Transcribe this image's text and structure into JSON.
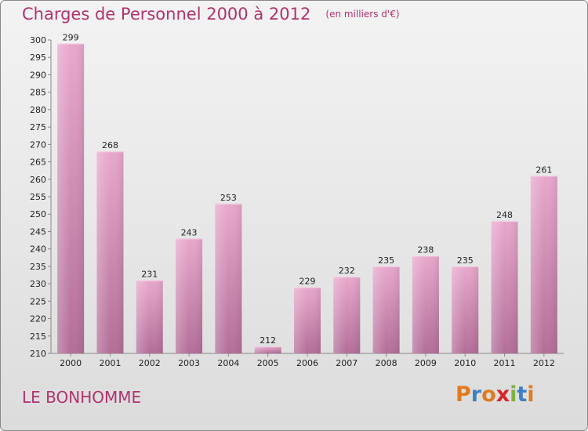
{
  "header": {
    "title": "Charges de Personnel 2000 à 2012",
    "subtitle": "(en milliers d'€)"
  },
  "footer": {
    "commune": "LE BONHOMME",
    "logo_text": "Proxiti"
  },
  "colors": {
    "title": "#b0336e",
    "bar_top": "#e8a8cc",
    "bar_bottom": "#b36e98",
    "logo_letters": [
      "#e07b1f",
      "#3e7fc4",
      "#e07b1f",
      "#d8242c",
      "#7cb342",
      "#3e7fc4",
      "#e07b1f"
    ]
  },
  "chart_data": {
    "type": "bar",
    "categories": [
      "2000",
      "2001",
      "2002",
      "2003",
      "2004",
      "2005",
      "2006",
      "2007",
      "2008",
      "2009",
      "2010",
      "2011",
      "2012"
    ],
    "values": [
      299,
      268,
      231,
      243,
      253,
      212,
      229,
      232,
      235,
      238,
      235,
      248,
      261
    ],
    "ylim": [
      210,
      300
    ],
    "yticks": [
      210,
      215,
      220,
      225,
      230,
      235,
      240,
      245,
      250,
      255,
      260,
      265,
      270,
      275,
      280,
      285,
      290,
      295,
      300
    ],
    "grid": false,
    "legend": "none"
  }
}
